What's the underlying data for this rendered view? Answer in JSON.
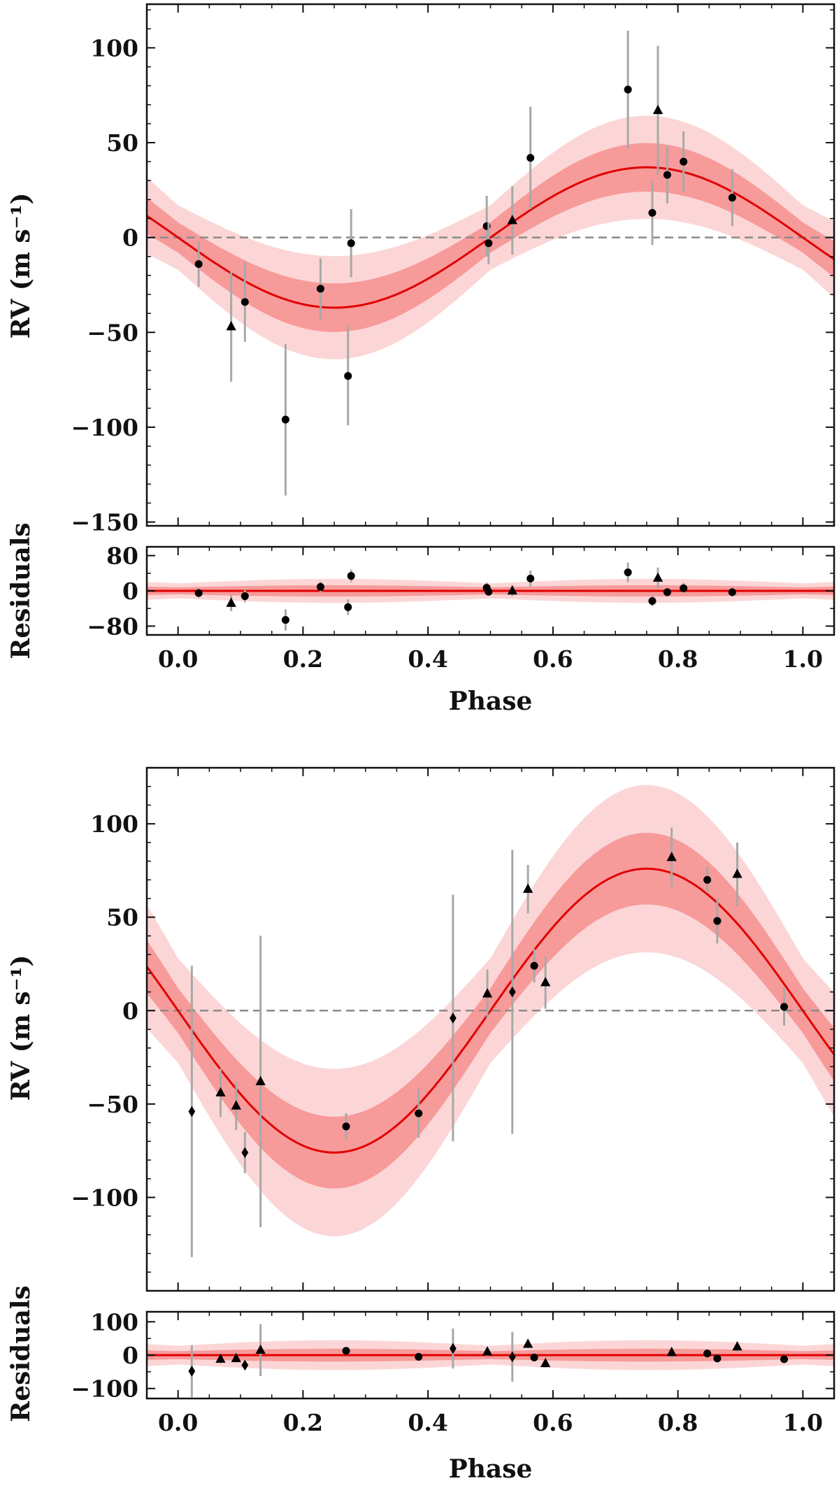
{
  "figure": {
    "x_label": "Phase",
    "y_label": "RV (m s⁻¹)",
    "residual_label": "Residuals",
    "colors": {
      "model": "#e00000",
      "band_inner": "#f79a9a",
      "band_outer": "#fcd6d6",
      "errorbar": "#a8a8a8",
      "marker": "#000000",
      "zero_line": "#8a8a8a"
    }
  },
  "chart_data": [
    {
      "type": "scatter",
      "panel": "top",
      "x": {
        "label": "Phase",
        "range": [
          -0.05,
          1.05
        ],
        "ticks": [
          0.0,
          0.2,
          0.4,
          0.6,
          0.8,
          1.0
        ],
        "tick_labels": [
          "0.0",
          "0.2",
          "0.4",
          "0.6",
          "0.8",
          "1.0"
        ]
      },
      "rv": {
        "ylabel": "RV (m s⁻¹)",
        "ylim": [
          -152,
          123
        ],
        "ticks": [
          -150,
          -100,
          -50,
          0,
          50,
          100
        ],
        "tick_labels": [
          "−150",
          "−100",
          "−50",
          "0",
          "50",
          "100"
        ],
        "model": {
          "amplitude": 37,
          "phase_of_minimum": 0.25,
          "band_inner": 8,
          "band_outer": 17
        },
        "points": [
          {
            "phase": 0.033,
            "rv": -14,
            "err": 12,
            "marker": "circle"
          },
          {
            "phase": 0.085,
            "rv": -47,
            "err": 29,
            "marker": "triangle"
          },
          {
            "phase": 0.107,
            "rv": -34,
            "err": 21,
            "marker": "circle"
          },
          {
            "phase": 0.172,
            "rv": -96,
            "err": 40,
            "marker": "circle"
          },
          {
            "phase": 0.228,
            "rv": -27,
            "err": 16,
            "marker": "circle"
          },
          {
            "phase": 0.272,
            "rv": -73,
            "err": 26,
            "marker": "circle"
          },
          {
            "phase": 0.277,
            "rv": -3,
            "err": 18,
            "marker": "circle"
          },
          {
            "phase": 0.494,
            "rv": 6,
            "err": 16,
            "marker": "circle"
          },
          {
            "phase": 0.497,
            "rv": -3,
            "err": 11,
            "marker": "circle"
          },
          {
            "phase": 0.535,
            "rv": 9,
            "err": 18,
            "marker": "triangle"
          },
          {
            "phase": 0.564,
            "rv": 42,
            "err": 27,
            "marker": "circle"
          },
          {
            "phase": 0.72,
            "rv": 78,
            "err": 31,
            "marker": "circle"
          },
          {
            "phase": 0.759,
            "rv": 13,
            "err": 17,
            "marker": "circle"
          },
          {
            "phase": 0.768,
            "rv": 67,
            "err": 34,
            "marker": "triangle"
          },
          {
            "phase": 0.783,
            "rv": 33,
            "err": 15,
            "marker": "circle"
          },
          {
            "phase": 0.809,
            "rv": 40,
            "err": 16,
            "marker": "circle"
          },
          {
            "phase": 0.887,
            "rv": 21,
            "err": 15,
            "marker": "circle"
          }
        ]
      },
      "residuals": {
        "ylabel": "Residuals",
        "ylim": [
          -100,
          100
        ],
        "ticks": [
          -80,
          0,
          80
        ],
        "tick_labels": [
          "−80",
          "0",
          "80"
        ],
        "band_inner": 8,
        "band_outer": 17,
        "points": [
          {
            "phase": 0.033,
            "res": -5,
            "err": 10,
            "marker": "circle"
          },
          {
            "phase": 0.085,
            "res": -28,
            "err": 18,
            "marker": "triangle"
          },
          {
            "phase": 0.107,
            "res": -12,
            "err": 14,
            "marker": "circle"
          },
          {
            "phase": 0.172,
            "res": -66,
            "err": 24,
            "marker": "circle"
          },
          {
            "phase": 0.228,
            "res": 9,
            "err": 12,
            "marker": "circle"
          },
          {
            "phase": 0.272,
            "res": -37,
            "err": 18,
            "marker": "circle"
          },
          {
            "phase": 0.277,
            "res": 34,
            "err": 14,
            "marker": "circle"
          },
          {
            "phase": 0.494,
            "res": 7,
            "err": 12,
            "marker": "circle"
          },
          {
            "phase": 0.497,
            "res": -2,
            "err": 8,
            "marker": "circle"
          },
          {
            "phase": 0.535,
            "res": 0,
            "err": 12,
            "marker": "triangle"
          },
          {
            "phase": 0.564,
            "res": 28,
            "err": 18,
            "marker": "circle"
          },
          {
            "phase": 0.72,
            "res": 42,
            "err": 22,
            "marker": "circle"
          },
          {
            "phase": 0.759,
            "res": -23,
            "err": 12,
            "marker": "circle"
          },
          {
            "phase": 0.768,
            "res": 29,
            "err": 24,
            "marker": "triangle"
          },
          {
            "phase": 0.783,
            "res": -3,
            "err": 10,
            "marker": "circle"
          },
          {
            "phase": 0.809,
            "res": 6,
            "err": 12,
            "marker": "circle"
          },
          {
            "phase": 0.887,
            "res": -3,
            "err": 10,
            "marker": "circle"
          }
        ]
      }
    },
    {
      "type": "scatter",
      "panel": "bottom",
      "x": {
        "label": "Phase",
        "range": [
          -0.05,
          1.05
        ],
        "ticks": [
          0.0,
          0.2,
          0.4,
          0.6,
          0.8,
          1.0
        ],
        "tick_labels": [
          "0.0",
          "0.2",
          "0.4",
          "0.6",
          "0.8",
          "1.0"
        ]
      },
      "rv": {
        "ylabel": "RV (m s⁻¹)",
        "ylim": [
          -150,
          130
        ],
        "ticks": [
          -100,
          -50,
          0,
          50,
          100
        ],
        "tick_labels": [
          "−100",
          "−50",
          "0",
          "50",
          "100"
        ],
        "model": {
          "amplitude": 76,
          "phase_of_minimum": 0.25,
          "band_inner": 12,
          "band_outer": 28
        },
        "points": [
          {
            "phase": 0.022,
            "rv": -54,
            "err": 78,
            "marker": "diamond"
          },
          {
            "phase": 0.068,
            "rv": -44,
            "err": 13,
            "marker": "triangle"
          },
          {
            "phase": 0.093,
            "rv": -51,
            "err": 13,
            "marker": "triangle"
          },
          {
            "phase": 0.107,
            "rv": -76,
            "err": 11,
            "marker": "diamond"
          },
          {
            "phase": 0.132,
            "rv": -38,
            "err": 78,
            "marker": "triangle"
          },
          {
            "phase": 0.269,
            "rv": -62,
            "err": 7,
            "marker": "circle"
          },
          {
            "phase": 0.385,
            "rv": -55,
            "err": 13,
            "marker": "circle"
          },
          {
            "phase": 0.44,
            "rv": -4,
            "err": 66,
            "marker": "diamond"
          },
          {
            "phase": 0.495,
            "rv": 9,
            "err": 13,
            "marker": "triangle"
          },
          {
            "phase": 0.535,
            "rv": 10,
            "err": 76,
            "marker": "diamond"
          },
          {
            "phase": 0.56,
            "rv": 65,
            "err": 13,
            "marker": "triangle"
          },
          {
            "phase": 0.57,
            "rv": 24,
            "err": 9,
            "marker": "circle"
          },
          {
            "phase": 0.588,
            "rv": 15,
            "err": 14,
            "marker": "triangle"
          },
          {
            "phase": 0.79,
            "rv": 82,
            "err": 16,
            "marker": "triangle"
          },
          {
            "phase": 0.847,
            "rv": 70,
            "err": 7,
            "marker": "circle"
          },
          {
            "phase": 0.863,
            "rv": 48,
            "err": 12,
            "marker": "circle"
          },
          {
            "phase": 0.895,
            "rv": 73,
            "err": 17,
            "marker": "triangle"
          },
          {
            "phase": 0.97,
            "rv": 2,
            "err": 10,
            "marker": "circle"
          }
        ]
      },
      "residuals": {
        "ylabel": "Residuals",
        "ylim": [
          -130,
          130
        ],
        "ticks": [
          -100,
          0,
          100
        ],
        "tick_labels": [
          "−100",
          "0",
          "100"
        ],
        "band_inner": 12,
        "band_outer": 28,
        "points": [
          {
            "phase": 0.022,
            "res": -48,
            "err": 78,
            "marker": "diamond"
          },
          {
            "phase": 0.068,
            "res": -12,
            "err": 12,
            "marker": "triangle"
          },
          {
            "phase": 0.093,
            "res": -10,
            "err": 12,
            "marker": "triangle"
          },
          {
            "phase": 0.107,
            "res": -30,
            "err": 10,
            "marker": "diamond"
          },
          {
            "phase": 0.132,
            "res": 15,
            "err": 78,
            "marker": "triangle"
          },
          {
            "phase": 0.269,
            "res": 13,
            "err": 8,
            "marker": "circle"
          },
          {
            "phase": 0.385,
            "res": -5,
            "err": 12,
            "marker": "circle"
          },
          {
            "phase": 0.44,
            "res": 20,
            "err": 60,
            "marker": "diamond"
          },
          {
            "phase": 0.495,
            "res": 10,
            "err": 12,
            "marker": "triangle"
          },
          {
            "phase": 0.535,
            "res": -5,
            "err": 75,
            "marker": "diamond"
          },
          {
            "phase": 0.56,
            "res": 33,
            "err": 12,
            "marker": "triangle"
          },
          {
            "phase": 0.57,
            "res": -7,
            "err": 9,
            "marker": "circle"
          },
          {
            "phase": 0.588,
            "res": -25,
            "err": 12,
            "marker": "triangle"
          },
          {
            "phase": 0.79,
            "res": 8,
            "err": 15,
            "marker": "triangle"
          },
          {
            "phase": 0.847,
            "res": 5,
            "err": 8,
            "marker": "circle"
          },
          {
            "phase": 0.863,
            "res": -10,
            "err": 12,
            "marker": "circle"
          },
          {
            "phase": 0.895,
            "res": 25,
            "err": 15,
            "marker": "triangle"
          },
          {
            "phase": 0.97,
            "res": -12,
            "err": 10,
            "marker": "circle"
          }
        ]
      }
    }
  ]
}
